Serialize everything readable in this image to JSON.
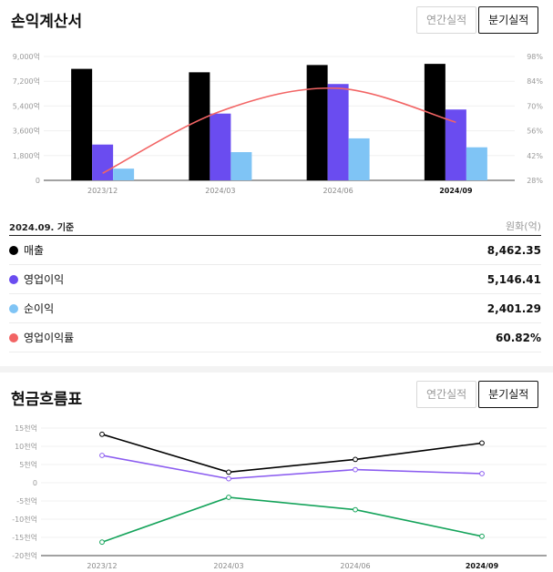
{
  "income": {
    "title": "손익계산서",
    "toggle": {
      "annual": "연간실적",
      "quarterly": "분기실적"
    },
    "basis": "2024.09. 기준",
    "unit": "원화(억)",
    "rows": [
      {
        "label": "매출",
        "value": "8,462.35",
        "color": "#000000"
      },
      {
        "label": "영업이익",
        "value": "5,146.41",
        "color": "#6a4cf0"
      },
      {
        "label": "순이익",
        "value": "2,401.29",
        "color": "#7fc4f5"
      },
      {
        "label": "영업이익률",
        "value": "60.82%",
        "color": "#f26464"
      }
    ]
  },
  "cashflow": {
    "title": "현금흐름표",
    "toggle": {
      "annual": "연간실적",
      "quarterly": "분기실적"
    }
  },
  "chart_data": [
    {
      "type": "bar",
      "title": "손익계산서",
      "categories": [
        "2023/12",
        "2024/03",
        "2024/06",
        "2024/09"
      ],
      "highlight_category": "2024/09",
      "series": [
        {
          "name": "매출",
          "color": "#000000",
          "values": [
            8100,
            7850,
            8380,
            8462.35
          ]
        },
        {
          "name": "영업이익",
          "color": "#6a4cf0",
          "values": [
            2600,
            4850,
            7000,
            5146.41
          ]
        },
        {
          "name": "순이익",
          "color": "#7fc4f5",
          "values": [
            850,
            2050,
            3050,
            2401.29
          ]
        }
      ],
      "line_series": {
        "name": "영업이익률",
        "color": "#f26464",
        "values": [
          32,
          67,
          80,
          60.82
        ]
      },
      "y_left": {
        "ticks": [
          "0",
          "1,800억",
          "3,600억",
          "5,400억",
          "7,200억",
          "9,000억"
        ],
        "lim": [
          0,
          9000
        ]
      },
      "y_right": {
        "ticks": [
          "28%",
          "42%",
          "56%",
          "70%",
          "84%",
          "98%"
        ],
        "lim": [
          28,
          98
        ]
      }
    },
    {
      "type": "line",
      "title": "현금흐름표",
      "categories": [
        "2023/12",
        "2024/03",
        "2024/06",
        "2024/09"
      ],
      "highlight_category": "2024/09",
      "series": [
        {
          "name": "series-1",
          "color": "#000000",
          "values": [
            13.3,
            2.9,
            6.4,
            10.9
          ]
        },
        {
          "name": "series-2",
          "color": "#8b5cf0",
          "values": [
            7.5,
            1.1,
            3.6,
            2.5
          ]
        },
        {
          "name": "series-3",
          "color": "#14a35a",
          "values": [
            -16.3,
            -4.0,
            -7.4,
            -14.7
          ]
        }
      ],
      "y": {
        "ticks": [
          "-20천억",
          "-15천억",
          "-10천억",
          "-5천억",
          "0",
          "5천억",
          "10천억",
          "15천억"
        ],
        "lim": [
          -20,
          15
        ]
      }
    }
  ]
}
